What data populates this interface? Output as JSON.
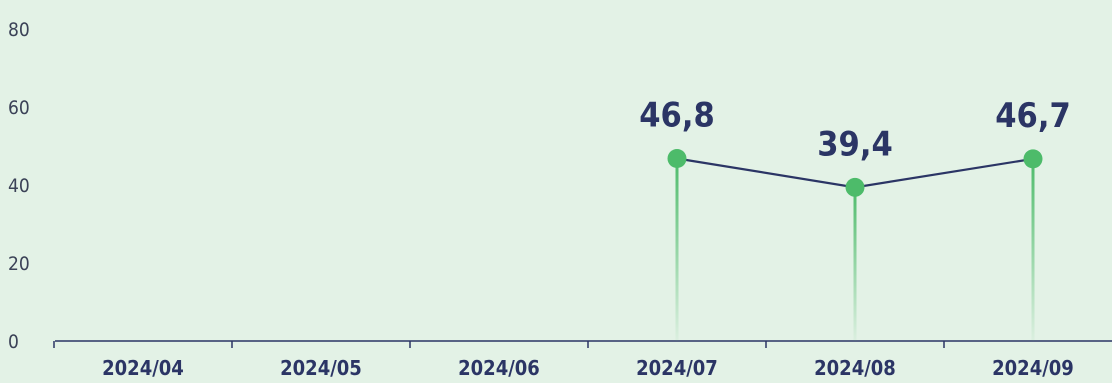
{
  "chart_data": {
    "type": "line",
    "categories": [
      "2024/04",
      "2024/05",
      "2024/06",
      "2024/07",
      "2024/08",
      "2024/09"
    ],
    "values": [
      null,
      null,
      null,
      46.8,
      39.4,
      46.7
    ],
    "data_labels": [
      "",
      "",
      "",
      "46,8",
      "39,4",
      "46,7"
    ],
    "y_ticks": [
      "0",
      "20",
      "40",
      "60",
      "80"
    ],
    "ylim": [
      0,
      80
    ],
    "grid": false,
    "colors": {
      "line": "#2b3565",
      "marker": "#4dbb6a",
      "stem": "#4dbb6a",
      "label": "#2b3565",
      "background": "#e3f2e6"
    }
  }
}
